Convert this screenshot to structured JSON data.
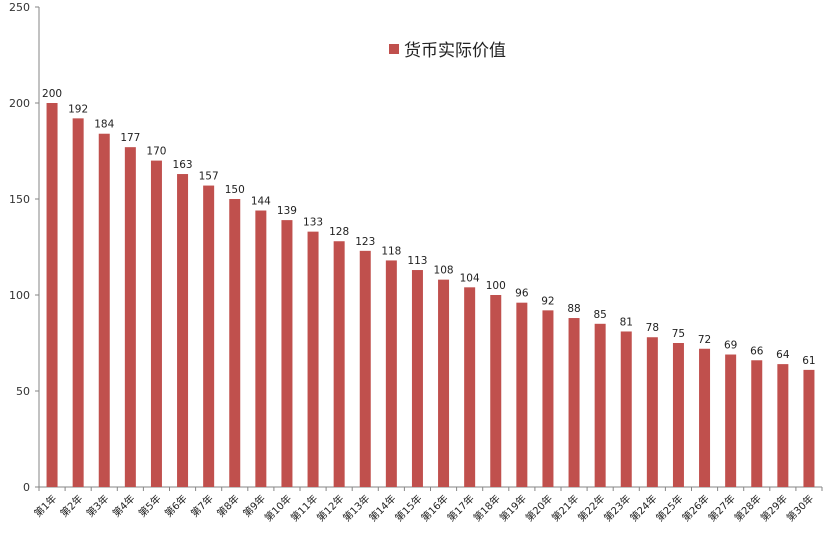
{
  "chart_data": {
    "type": "bar",
    "title": "",
    "xlabel": "",
    "ylabel": "",
    "ylim": [
      0,
      250
    ],
    "yticks": [
      0,
      50,
      100,
      150,
      200,
      250
    ],
    "grid": false,
    "legend_position": "top-center",
    "categories": [
      "第1年",
      "第2年",
      "第3年",
      "第4年",
      "第5年",
      "第6年",
      "第7年",
      "第8年",
      "第9年",
      "第10年",
      "第11年",
      "第12年",
      "第13年",
      "第14年",
      "第15年",
      "第16年",
      "第17年",
      "第18年",
      "第19年",
      "第20年",
      "第21年",
      "第22年",
      "第23年",
      "第24年",
      "第25年",
      "第26年",
      "第27年",
      "第28年",
      "第29年",
      "第30年"
    ],
    "series": [
      {
        "name": "货币实际价值",
        "color": "#C0504D",
        "values": [
          200,
          192,
          184,
          177,
          170,
          163,
          157,
          150,
          144,
          139,
          133,
          128,
          123,
          118,
          113,
          108,
          104,
          100,
          96,
          92,
          88,
          85,
          81,
          78,
          75,
          72,
          69,
          66,
          64,
          61
        ]
      }
    ]
  },
  "legend": {
    "label": "货币实际价值",
    "color": "#C0504D"
  }
}
